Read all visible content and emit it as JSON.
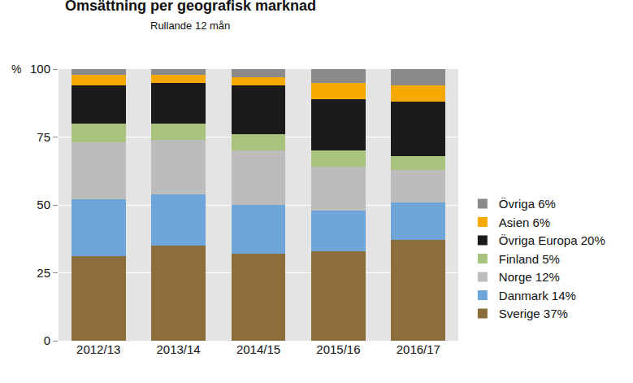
{
  "chart_data": {
    "type": "bar",
    "stacked": true,
    "title": "Omsättning per geografisk marknad",
    "subtitle": "Rullande 12 mån",
    "ylabel": "%",
    "categories": [
      "2012/13",
      "2013/14",
      "2014/15",
      "2015/16",
      "2016/17"
    ],
    "series": [
      {
        "name": "Sverige 37%",
        "color": "#8c6d3c",
        "values": [
          31,
          35,
          32,
          33,
          37
        ]
      },
      {
        "name": "Danmark 14%",
        "color": "#6ea6da",
        "values": [
          21,
          19,
          18,
          15,
          14
        ]
      },
      {
        "name": "Norge 12%",
        "color": "#bcbcbc",
        "values": [
          21,
          20,
          20,
          16,
          12
        ]
      },
      {
        "name": "Finland 5%",
        "color": "#a8c47c",
        "values": [
          7,
          6,
          6,
          6,
          5
        ]
      },
      {
        "name": "Övriga Europa 20%",
        "color": "#1b1b1b",
        "values": [
          14,
          15,
          18,
          19,
          20
        ]
      },
      {
        "name": "Asien 6%",
        "color": "#f5a800",
        "values": [
          4,
          3,
          3,
          6,
          6
        ]
      },
      {
        "name": "Övriga 6%",
        "color": "#8a8a8a",
        "values": [
          2,
          2,
          3,
          5,
          6
        ]
      }
    ],
    "ylim": [
      0,
      100
    ],
    "yticks": [
      0,
      25,
      50,
      75,
      100
    ],
    "grid": true,
    "legend": "right"
  }
}
